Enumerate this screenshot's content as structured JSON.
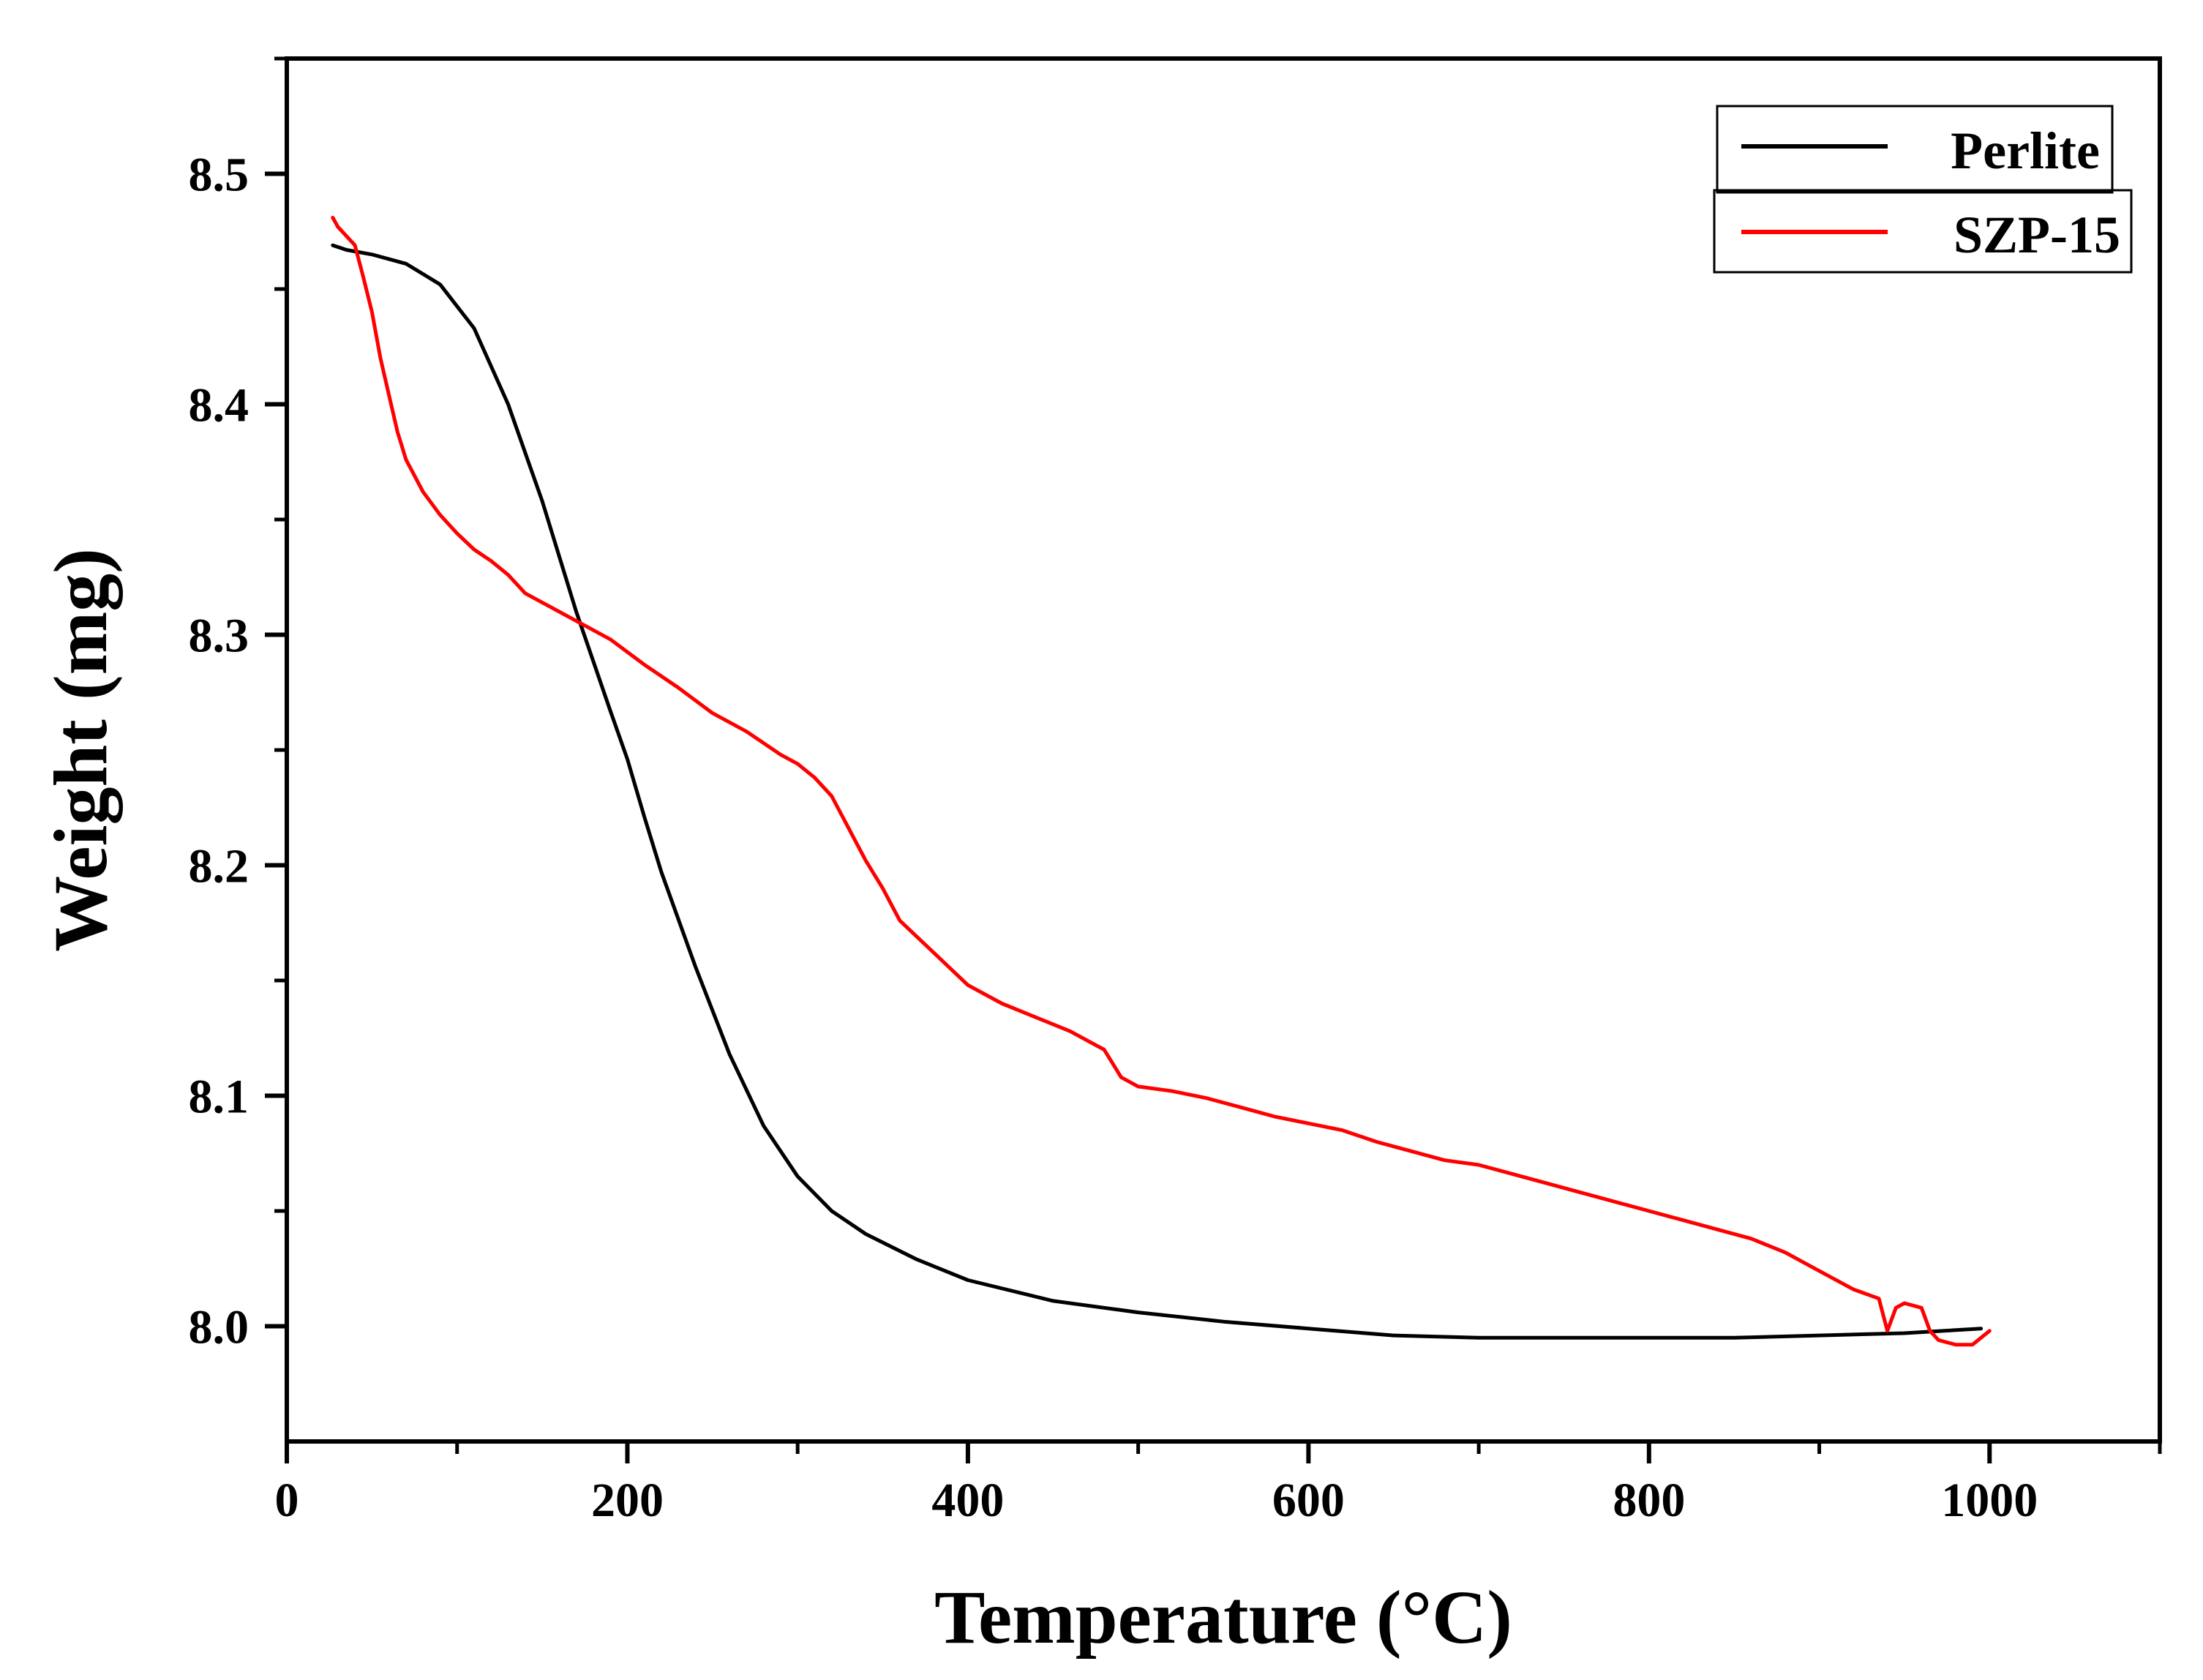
{
  "chart_data": {
    "type": "line",
    "title": "",
    "xlabel": "Temperature (°C)",
    "ylabel": "Weight (mg)",
    "xlim": [
      0,
      1100
    ],
    "ylim": [
      7.95,
      8.55
    ],
    "xticks": [
      0,
      200,
      400,
      600,
      800,
      1000
    ],
    "xticks_minor": [
      100,
      300,
      500,
      700,
      900,
      1100
    ],
    "yticks": [
      8.0,
      8.1,
      8.2,
      8.3,
      8.4,
      8.5
    ],
    "yticks_minor": [
      8.05,
      8.15,
      8.25,
      8.35,
      8.45,
      8.55
    ],
    "xtick_labels": [
      "0",
      "200",
      "400",
      "600",
      "800",
      "1000"
    ],
    "ytick_labels": [
      "8.0",
      "8.1",
      "8.2",
      "8.3",
      "8.4",
      "8.5"
    ],
    "grid": false,
    "legend_position": "top-right",
    "series": [
      {
        "name": "Perlite",
        "color": "#000000",
        "x": [
          27,
          35,
          50,
          70,
          90,
          110,
          130,
          150,
          170,
          190,
          200,
          210,
          220,
          240,
          260,
          280,
          300,
          320,
          340,
          370,
          400,
          450,
          500,
          550,
          600,
          650,
          700,
          750,
          800,
          850,
          900,
          950,
          995
        ],
        "y": [
          8.469,
          8.467,
          8.465,
          8.461,
          8.452,
          8.433,
          8.4,
          8.358,
          8.31,
          8.267,
          8.246,
          8.221,
          8.197,
          8.156,
          8.118,
          8.087,
          8.065,
          8.05,
          8.04,
          8.029,
          8.02,
          8.011,
          8.006,
          8.002,
          7.999,
          7.996,
          7.995,
          7.995,
          7.995,
          7.995,
          7.996,
          7.997,
          7.999
        ]
      },
      {
        "name": "SZP-15",
        "color": "#ff0000",
        "x": [
          27,
          30,
          40,
          45,
          50,
          55,
          60,
          65,
          70,
          80,
          90,
          100,
          110,
          120,
          130,
          140,
          150,
          170,
          190,
          210,
          230,
          250,
          270,
          290,
          300,
          310,
          320,
          330,
          340,
          350,
          360,
          380,
          400,
          420,
          440,
          460,
          480,
          490,
          500,
          520,
          540,
          560,
          580,
          600,
          620,
          640,
          660,
          680,
          700,
          720,
          740,
          760,
          780,
          800,
          820,
          840,
          860,
          880,
          900,
          920,
          935,
          940,
          945,
          950,
          960,
          965,
          970,
          980,
          990,
          1000
        ],
        "y": [
          8.481,
          8.477,
          8.469,
          8.455,
          8.44,
          8.42,
          8.404,
          8.388,
          8.376,
          8.362,
          8.352,
          8.344,
          8.337,
          8.332,
          8.326,
          8.318,
          8.314,
          8.306,
          8.298,
          8.287,
          8.277,
          8.266,
          8.258,
          8.248,
          8.244,
          8.238,
          8.23,
          8.216,
          8.202,
          8.19,
          8.176,
          8.162,
          8.148,
          8.14,
          8.134,
          8.128,
          8.12,
          8.108,
          8.104,
          8.102,
          8.099,
          8.095,
          8.091,
          8.088,
          8.085,
          8.08,
          8.076,
          8.072,
          8.07,
          8.066,
          8.062,
          8.058,
          8.054,
          8.05,
          8.046,
          8.042,
          8.038,
          8.032,
          8.024,
          8.016,
          8.012,
          7.998,
          8.008,
          8.01,
          8.008,
          7.998,
          7.994,
          7.992,
          7.992,
          7.998
        ]
      }
    ]
  }
}
